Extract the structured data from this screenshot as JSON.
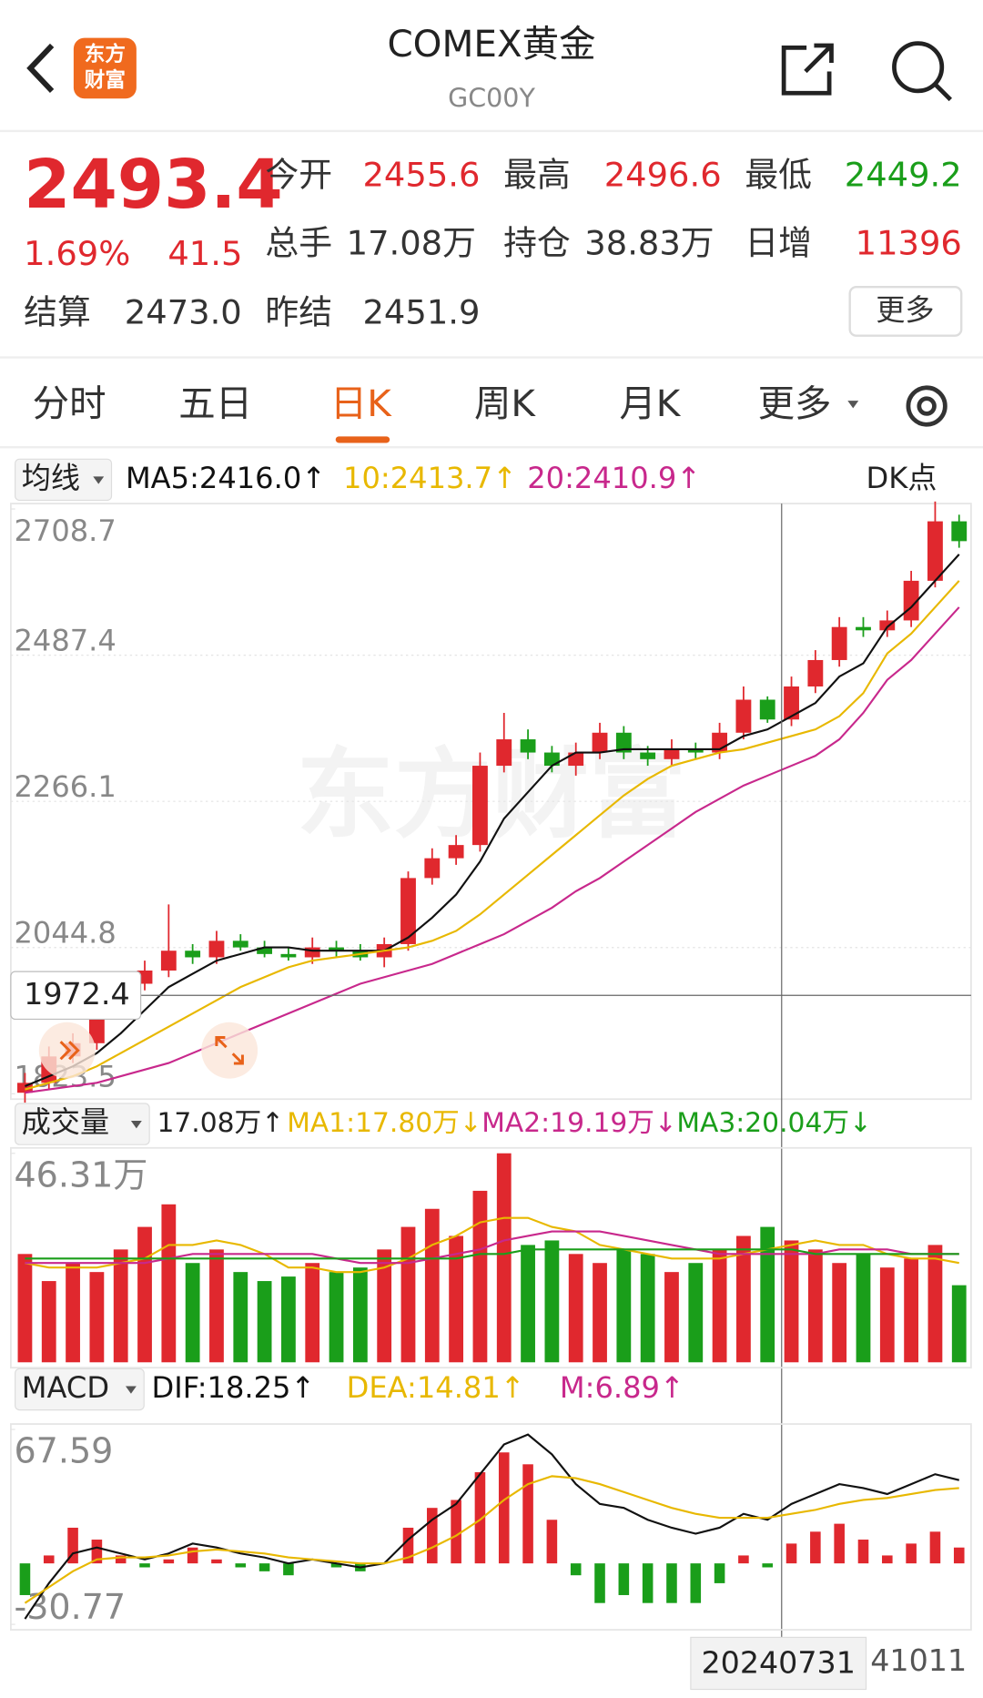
{
  "header": {
    "title": "COMEX黄金",
    "code": "GC00Y",
    "logo": [
      "东方",
      "财富"
    ],
    "watermark": "东方财富"
  },
  "quote": {
    "price": "2493.4",
    "change_pct": "1.69%",
    "change": "41.5",
    "open_label": "今开",
    "open": "2455.6",
    "high_label": "最高",
    "high": "2496.6",
    "low_label": "最低",
    "low": "2449.2",
    "volume_label": "总手",
    "volume": "17.08万",
    "position_label": "持仓",
    "position": "38.83万",
    "daily_inc_label": "日增",
    "daily_inc": "11396",
    "settle_label": "结算",
    "settle": "2473.0",
    "prev_settle_label": "昨结",
    "prev_settle": "2451.9",
    "more": "更多"
  },
  "tabs": [
    "分时",
    "五日",
    "日K",
    "周K",
    "月K",
    "更多"
  ],
  "active_tab": 2,
  "chart_data": [
    {
      "type": "candlestick",
      "indicator": "均线",
      "badge": "DK点",
      "up_color": "#e0282e",
      "down_color": "#1a9e1a",
      "categories": [
        null,
        null,
        null,
        null,
        null,
        null,
        null,
        null,
        null,
        null,
        null,
        null,
        null,
        null,
        null,
        null,
        null,
        null,
        null,
        null,
        null,
        null,
        null,
        null,
        null,
        null,
        null,
        null,
        null,
        null,
        null,
        null,
        "20240731",
        null,
        null,
        null,
        null,
        null,
        null,
        "41011"
      ],
      "open": [
        1825,
        1840,
        1880,
        1900,
        1960,
        1990,
        2010,
        2040,
        2030,
        2055,
        2045,
        2035,
        2030,
        2045,
        2040,
        2030,
        2050,
        2150,
        2180,
        2200,
        2320,
        2360,
        2340,
        2320,
        2340,
        2370,
        2340,
        2330,
        2345,
        2340,
        2370,
        2420,
        2390,
        2440,
        2480,
        2530,
        2525,
        2540,
        2600,
        2690
      ],
      "high": [
        1855,
        1895,
        1915,
        1975,
        2000,
        2025,
        2110,
        2050,
        2070,
        2065,
        2055,
        2045,
        2060,
        2055,
        2050,
        2060,
        2160,
        2195,
        2215,
        2340,
        2400,
        2375,
        2350,
        2355,
        2385,
        2380,
        2350,
        2360,
        2355,
        2385,
        2440,
        2425,
        2455,
        2495,
        2545,
        2545,
        2555,
        2615,
        2720,
        2700
      ],
      "low": [
        1810,
        1830,
        1870,
        1890,
        1950,
        1980,
        2000,
        2020,
        2020,
        2040,
        2030,
        2025,
        2020,
        2030,
        2025,
        2015,
        2040,
        2140,
        2170,
        2190,
        2310,
        2330,
        2310,
        2305,
        2330,
        2330,
        2320,
        2320,
        2330,
        2330,
        2360,
        2385,
        2380,
        2430,
        2470,
        2515,
        2515,
        2530,
        2590,
        2650
      ],
      "close": [
        1840,
        1880,
        1900,
        1960,
        1990,
        2010,
        2040,
        2030,
        2055,
        2045,
        2035,
        2030,
        2045,
        2040,
        2030,
        2050,
        2150,
        2180,
        2200,
        2320,
        2360,
        2340,
        2320,
        2340,
        2370,
        2340,
        2330,
        2345,
        2340,
        2370,
        2420,
        2390,
        2440,
        2480,
        2530,
        2525,
        2540,
        2600,
        2690,
        2660
      ],
      "series": [
        {
          "name": "MA5:2416.0↑",
          "color": "#111111",
          "values": [
            1835,
            1850,
            1865,
            1885,
            1915,
            1950,
            1985,
            2005,
            2025,
            2035,
            2045,
            2045,
            2040,
            2040,
            2040,
            2040,
            2060,
            2090,
            2125,
            2175,
            2240,
            2280,
            2320,
            2340,
            2340,
            2345,
            2345,
            2345,
            2345,
            2345,
            2365,
            2375,
            2395,
            2415,
            2455,
            2475,
            2530,
            2560,
            2600,
            2640
          ]
        },
        {
          "name": "10:2413.7↑",
          "color": "#e8b800",
          "values": [
            1830,
            1840,
            1850,
            1865,
            1885,
            1905,
            1925,
            1945,
            1965,
            1985,
            2000,
            2015,
            2025,
            2030,
            2035,
            2040,
            2045,
            2055,
            2070,
            2095,
            2125,
            2155,
            2185,
            2215,
            2245,
            2275,
            2300,
            2320,
            2330,
            2340,
            2345,
            2355,
            2365,
            2375,
            2395,
            2430,
            2490,
            2520,
            2560,
            2600
          ]
        },
        {
          "name": "20:2410.9↑",
          "color": "#c8288c",
          "values": [
            1825,
            1830,
            1835,
            1840,
            1850,
            1860,
            1870,
            1885,
            1900,
            1915,
            1930,
            1945,
            1960,
            1975,
            1990,
            2000,
            2010,
            2020,
            2035,
            2050,
            2065,
            2085,
            2105,
            2130,
            2150,
            2175,
            2200,
            2225,
            2250,
            2270,
            2290,
            2305,
            2320,
            2335,
            2360,
            2400,
            2450,
            2480,
            2520,
            2560
          ]
        }
      ],
      "ylim": [
        1823.5,
        2708.7
      ],
      "yticks": [
        1823.5,
        2044.8,
        2266.1,
        2487.4,
        2708.7
      ],
      "crosshair": 1972.4
    },
    {
      "type": "bar",
      "indicator": "成交量",
      "current": "17.08万↑",
      "values": [
        24,
        18,
        22,
        20,
        25,
        30,
        35,
        22,
        25,
        20,
        18,
        19,
        22,
        20,
        21,
        25,
        30,
        34,
        28,
        38,
        46.31,
        26,
        27,
        24,
        22,
        25,
        24,
        20,
        22,
        25,
        28,
        30,
        27,
        25,
        22,
        24,
        21,
        23,
        26,
        17.08
      ],
      "series": [
        {
          "name": "MA1:17.80万↓",
          "color": "#e8b800",
          "values": [
            22,
            21,
            21,
            21,
            22,
            23,
            26,
            26,
            27,
            26,
            24,
            21,
            21,
            20,
            20,
            21,
            23,
            26,
            28,
            31,
            32,
            32,
            30,
            29,
            26,
            25,
            24,
            23,
            23,
            23,
            24,
            25,
            26,
            27,
            26,
            26,
            24,
            23,
            23,
            22
          ]
        },
        {
          "name": "MA2:19.19万↓",
          "color": "#c8288c",
          "values": [
            22,
            22,
            22,
            22,
            22,
            22,
            23,
            24,
            24,
            24,
            24,
            24,
            24,
            23,
            22,
            22,
            22,
            23,
            24,
            25,
            27,
            28,
            29,
            29,
            29,
            28,
            27,
            26,
            25,
            24,
            24,
            24,
            24,
            24,
            25,
            25,
            25,
            24,
            24,
            24
          ]
        },
        {
          "name": "MA3:20.04万↓",
          "color": "#1a9e1a",
          "values": [
            23,
            23,
            23,
            23,
            23,
            23,
            23,
            23,
            23,
            23,
            23,
            23,
            23,
            23,
            23,
            23,
            23,
            23,
            23,
            24,
            24,
            25,
            25,
            25,
            25,
            25,
            25,
            25,
            25,
            25,
            25,
            25,
            25,
            24,
            24,
            24,
            24,
            24,
            24,
            24
          ]
        }
      ],
      "ylim": [
        0,
        46.31
      ],
      "yticks": [
        {
          "value": 46.31,
          "label": "46.31万"
        }
      ]
    },
    {
      "type": "macd",
      "indicator": "MACD",
      "up_color": "#e0282e",
      "down_color": "#1a9e1a",
      "series": [
        {
          "name": "DIF:18.25↑",
          "color": "#111111",
          "values": [
            -28,
            -10,
            5,
            8,
            5,
            2,
            5,
            10,
            8,
            5,
            3,
            0,
            2,
            0,
            -2,
            0,
            12,
            22,
            30,
            45,
            60,
            65,
            55,
            40,
            30,
            28,
            22,
            18,
            15,
            18,
            25,
            22,
            30,
            35,
            40,
            38,
            35,
            40,
            45,
            42
          ]
        },
        {
          "name": "DEA:14.81↑",
          "color": "#e8b800",
          "values": [
            -20,
            -12,
            -4,
            2,
            3,
            3,
            4,
            6,
            7,
            6,
            5,
            3,
            2,
            1,
            0,
            0,
            3,
            8,
            14,
            22,
            32,
            40,
            44,
            43,
            40,
            36,
            32,
            28,
            25,
            23,
            23,
            23,
            25,
            27,
            30,
            32,
            33,
            35,
            37,
            38
          ]
        }
      ],
      "histogram": {
        "name": "M:6.89↑",
        "color": "#c8288c",
        "values": [
          -16,
          4,
          18,
          12,
          4,
          -2,
          2,
          8,
          2,
          -2,
          -4,
          -6,
          0,
          -2,
          -4,
          0,
          18,
          28,
          32,
          46,
          56,
          50,
          22,
          -6,
          -20,
          -16,
          -20,
          -20,
          -20,
          -10,
          4,
          -2,
          10,
          16,
          20,
          12,
          4,
          10,
          16,
          8
        ]
      },
      "ylim": [
        -30.77,
        67.59
      ],
      "yticks": [
        -30.77,
        67.59
      ]
    }
  ]
}
